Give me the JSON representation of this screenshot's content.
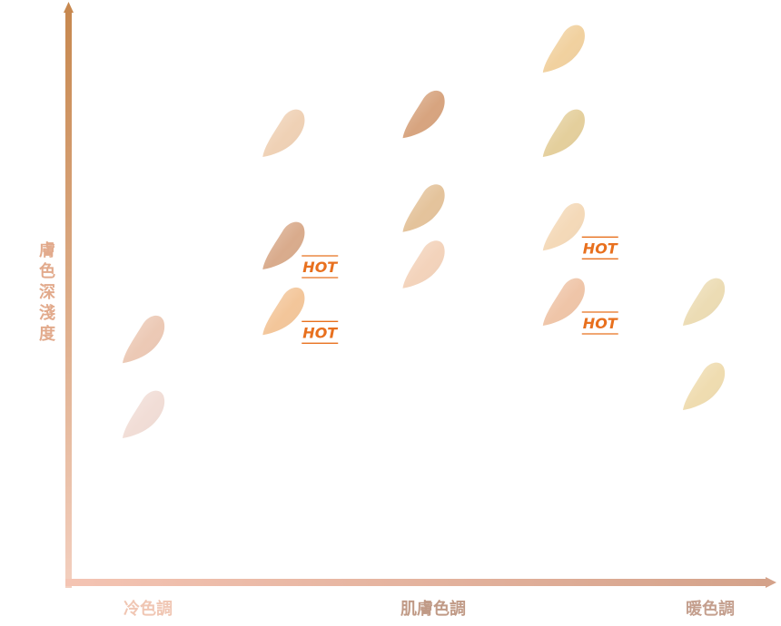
{
  "chart_data": {
    "type": "scatter",
    "title": "",
    "xlabel": "肌膚色調",
    "ylabel": "膚色深淺度",
    "x_tick_labels": [
      "冷色調",
      "",
      "",
      "",
      "暖色調"
    ],
    "xlim": [
      0,
      4
    ],
    "ylim": [
      0,
      4.5
    ],
    "x_label_color": "#c09a86",
    "y_label_color": "#e2aa8c",
    "x_tick_color_left": "#f0c6b3",
    "x_tick_color_right": "#c49f8e",
    "axis_color_top": "#c7884f",
    "axis_color_bottom": "#f3cfbf",
    "axis_color_left_end": "#f4c4b3",
    "axis_color_right_end": "#d4a28a",
    "hot_label": "HOT",
    "hot_color": "#e8701e",
    "points": [
      {
        "x": 0,
        "y": 1.4,
        "color": "#ecc9b5",
        "hot": false
      },
      {
        "x": 0,
        "y": 0.6,
        "color": "#f1ddd6",
        "hot": false
      },
      {
        "x": 1,
        "y": 3.6,
        "color": "#efd1b5",
        "hot": false
      },
      {
        "x": 1,
        "y": 2.4,
        "color": "#d9ab8c",
        "hot": true
      },
      {
        "x": 1,
        "y": 1.7,
        "color": "#f3c69a",
        "hot": true
      },
      {
        "x": 2,
        "y": 3.8,
        "color": "#d7a47f",
        "hot": false
      },
      {
        "x": 2,
        "y": 2.8,
        "color": "#e4c39b",
        "hot": false
      },
      {
        "x": 2,
        "y": 2.2,
        "color": "#f3d3bb",
        "hot": false
      },
      {
        "x": 3,
        "y": 4.5,
        "color": "#f1d19f",
        "hot": false
      },
      {
        "x": 3,
        "y": 3.6,
        "color": "#e4cf9c",
        "hot": false
      },
      {
        "x": 3,
        "y": 2.6,
        "color": "#f4d9b8",
        "hot": true
      },
      {
        "x": 3,
        "y": 1.8,
        "color": "#efc5a8",
        "hot": true
      },
      {
        "x": 4,
        "y": 1.8,
        "color": "#ecdcb4",
        "hot": false
      },
      {
        "x": 4,
        "y": 0.9,
        "color": "#efdcb0",
        "hot": false
      }
    ]
  }
}
